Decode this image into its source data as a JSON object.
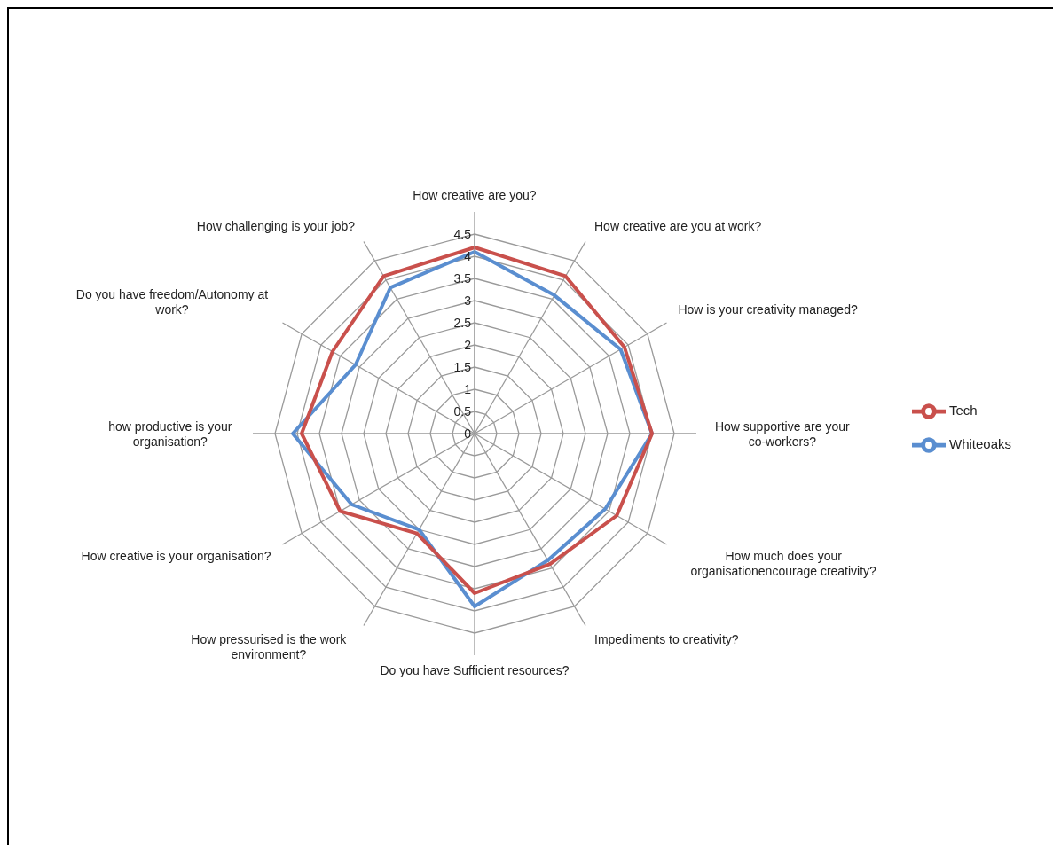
{
  "chart_data": {
    "type": "radar",
    "categories": [
      "How creative are you?",
      "How creative are you at work?",
      "How is your creativity managed?",
      "How supportive are your co-workers?",
      "How much does your organisationencourage creativity?",
      "Impediments to creativity?",
      "Do you have Sufficient resources?",
      "How pressurised is the work environment?",
      "How creative is your organisation?",
      "how productive is your organisation?",
      "Do you have freedom/Autonomy at work?",
      "How challenging is your job?"
    ],
    "series": [
      {
        "name": "Whiteoaks",
        "color": "#5a8ed0",
        "values": [
          4.1,
          3.6,
          3.8,
          4.0,
          3.4,
          3.3,
          3.9,
          2.5,
          3.2,
          4.1,
          3.1,
          3.8
        ]
      },
      {
        "name": "Tech",
        "color": "#c9504c",
        "values": [
          4.2,
          4.1,
          3.9,
          4.0,
          3.7,
          3.4,
          3.6,
          2.6,
          3.5,
          3.9,
          3.7,
          4.1
        ]
      }
    ],
    "ylim": [
      0,
      4.5
    ],
    "yticks": [
      0,
      0.5,
      1,
      1.5,
      2,
      2.5,
      3,
      3.5,
      4,
      4.5
    ],
    "grid": true,
    "legend": "right",
    "marker": "none"
  }
}
